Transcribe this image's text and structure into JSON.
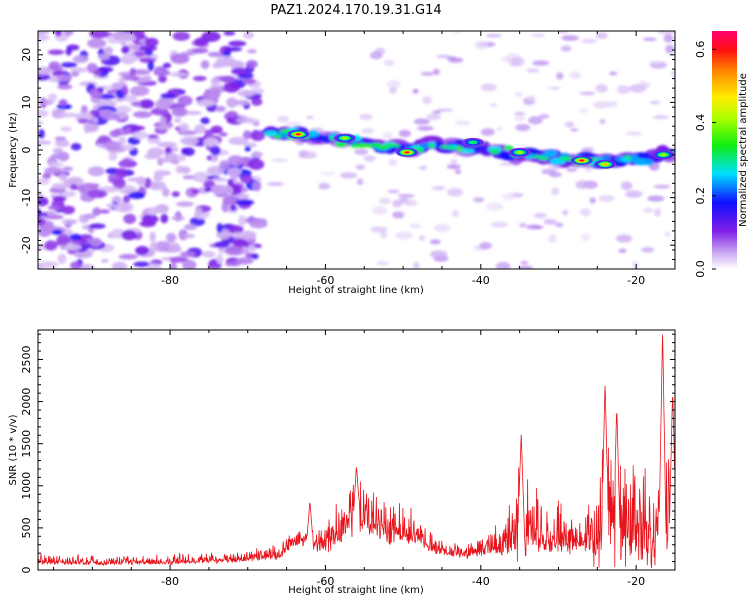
{
  "chart_data": [
    {
      "type": "heatmap",
      "title": "PAZ1.2024.170.19.31.G14",
      "xlabel": "Height of straight line (km)",
      "ylabel": "Frequency (Hz)",
      "xlim": [
        -97,
        -15
      ],
      "ylim": [
        -25,
        25
      ],
      "xticks": [
        -80,
        -60,
        -40,
        -20
      ],
      "yticks": [
        -20,
        -10,
        0,
        10,
        20
      ],
      "colorbar": {
        "label": "Normalized spectral amplitude",
        "range": [
          0,
          0.65
        ],
        "ticks": [
          0.0,
          0.2,
          0.4,
          0.6
        ],
        "colormap": "hsv-rainbow"
      },
      "band_ridge": {
        "x": [
          -66,
          -60,
          -55,
          -50,
          -45,
          -40,
          -35,
          -30,
          -25,
          -20,
          -15
        ],
        "y": [
          3.5,
          2.5,
          1.5,
          0,
          1,
          0.5,
          -1,
          -2,
          -2.5,
          -2,
          -0.5
        ]
      },
      "hotspots": [
        {
          "x": -63.5,
          "y": 3.3,
          "amplitude": 0.62
        },
        {
          "x": -49.5,
          "y": -0.5,
          "amplitude": 0.6
        },
        {
          "x": -27,
          "y": -2.2,
          "amplitude": 0.6
        },
        {
          "x": -24,
          "y": -3,
          "amplitude": 0.58
        },
        {
          "x": -57.5,
          "y": 2.5,
          "amplitude": 0.45
        },
        {
          "x": -35,
          "y": -0.5,
          "amplitude": 0.45
        },
        {
          "x": -41,
          "y": 1.6,
          "amplitude": 0.38
        },
        {
          "x": -16.5,
          "y": -1,
          "amplitude": 0.4
        }
      ]
    },
    {
      "type": "line",
      "xlabel": "Height of straight line (km)",
      "ylabel": "SNR (10 * v/v)",
      "xlim": [
        -97,
        -15
      ],
      "ylim": [
        0,
        2850
      ],
      "xticks": [
        -80,
        -60,
        -40,
        -20
      ],
      "yticks": [
        0,
        500,
        1000,
        1500,
        2000,
        2500
      ],
      "color": "#e8141c",
      "envelope": {
        "x": [
          -97,
          -90,
          -80,
          -72,
          -70,
          -66,
          -64,
          -60,
          -58,
          -56,
          -54,
          -52,
          -50,
          -48,
          -46,
          -44,
          -42,
          -40,
          -38,
          -36,
          -35,
          -34,
          -32,
          -30,
          -28,
          -26,
          -24,
          -22,
          -20,
          -18,
          -17,
          -16,
          -15
        ],
        "baseline": [
          90,
          80,
          90,
          110,
          130,
          160,
          330,
          250,
          420,
          580,
          540,
          400,
          420,
          360,
          230,
          200,
          170,
          210,
          260,
          290,
          380,
          380,
          320,
          330,
          330,
          290,
          380,
          360,
          420,
          260,
          480,
          380,
          450
        ],
        "amplitude": [
          110,
          100,
          110,
          110,
          130,
          160,
          170,
          320,
          480,
          620,
          500,
          500,
          420,
          300,
          180,
          140,
          150,
          210,
          330,
          580,
          1250,
          1000,
          450,
          620,
          560,
          620,
          1280,
          1150,
          1300,
          1200,
          1900,
          1100,
          1350
        ]
      },
      "peaks": [
        {
          "x": -16.6,
          "y": 2850
        },
        {
          "x": -24,
          "y": 2250
        },
        {
          "x": -15.3,
          "y": 2150
        },
        {
          "x": -22.5,
          "y": 1950
        },
        {
          "x": -34.8,
          "y": 1620
        },
        {
          "x": -56,
          "y": 1250
        },
        {
          "x": -62,
          "y": 820
        }
      ]
    }
  ]
}
